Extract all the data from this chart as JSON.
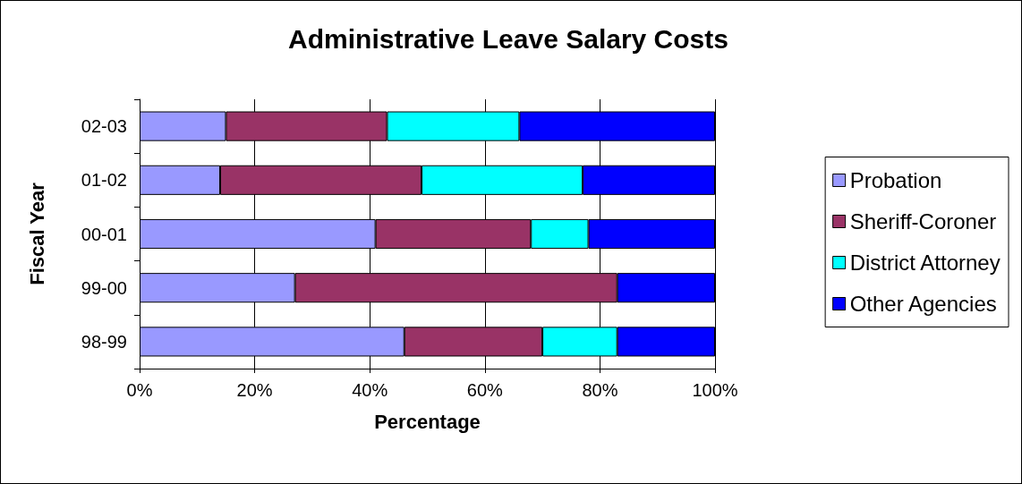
{
  "chart_data": {
    "type": "bar",
    "title": "Administrative Leave Salary Costs",
    "xlabel": "Percentage",
    "ylabel": "Fiscal Year",
    "orientation": "horizontal",
    "stacked": true,
    "categories": [
      "02-03",
      "01-02",
      "00-01",
      "99-00",
      "98-99"
    ],
    "series": [
      {
        "name": "Probation",
        "color": "#9999ff",
        "values": [
          15,
          14,
          41,
          27,
          46
        ]
      },
      {
        "name": "Sheriff-Coroner",
        "color": "#993366",
        "values": [
          28,
          35,
          27,
          56,
          24
        ]
      },
      {
        "name": "District Attorney",
        "color": "#00ffff",
        "values": [
          23,
          28,
          10,
          null,
          13
        ]
      },
      {
        "name": "Other Agencies",
        "color": "#0000ff",
        "values": [
          34,
          23,
          22,
          17,
          17
        ]
      }
    ],
    "xlim": [
      0,
      100
    ],
    "xticks": [
      {
        "value": 0,
        "label": "0%"
      },
      {
        "value": 20,
        "label": "20%"
      },
      {
        "value": 40,
        "label": "40%"
      },
      {
        "value": 60,
        "label": "60%"
      },
      {
        "value": 80,
        "label": "80%"
      },
      {
        "value": 100,
        "label": "100%"
      }
    ],
    "grid": "x",
    "legend": "right"
  }
}
